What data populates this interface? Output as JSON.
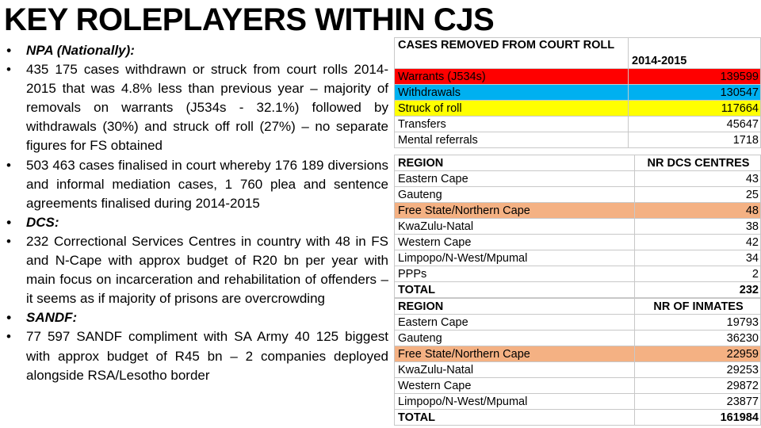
{
  "title": "KEY ROLEPLAYERS WITHIN CJS",
  "bullets": [
    {
      "text": "NPA (Nationally):",
      "style": "head"
    },
    {
      "text": "435 175 cases withdrawn or struck from court rolls 2014-2015 that was 4.8% less than previous year – majority of removals on warrants (J534s - 32.1%) followed by withdrawals (30%) and struck off roll (27%) – no separate figures for FS obtained",
      "style": "body"
    },
    {
      "text": "503 463 cases finalised in court whereby 176 189 diversions and informal mediation cases, 1 760 plea and sentence agreements finalised during 2014-2015",
      "style": "body"
    },
    {
      "text": "DCS:",
      "style": "head"
    },
    {
      "text": "232 Correctional Services Centres in country with 48 in FS and N-Cape with approx budget of R20 bn per year with main focus on incarceration and rehabilitation of offenders – it seems as if majority of prisons are overcrowding",
      "style": "body"
    },
    {
      "text": "SANDF:",
      "style": "head"
    },
    {
      "text": "77 597 SANDF compliment with SA Army 40 125 biggest with approx budget of R45 bn – 2 companies deployed alongside RSA/Lesotho border",
      "style": "body"
    }
  ],
  "bullet_glyph": "•",
  "colors": {
    "red": "#ff0000",
    "blue": "#00b0f0",
    "yellow": "#ffff00",
    "salmon": "#f4b183"
  },
  "court_table": {
    "header_label": "CASES REMOVED FROM COURT ROLL",
    "header_value": "2014-2015",
    "rows": [
      {
        "label": "Warrants (J534s)",
        "value": "139599",
        "color": "red"
      },
      {
        "label": "Withdrawals",
        "value": "130547",
        "color": "blue"
      },
      {
        "label": "Struck of roll",
        "value": "117664",
        "color": "yellow"
      },
      {
        "label": "Transfers",
        "value": "45647",
        "color": ""
      },
      {
        "label": "Mental referrals",
        "value": "1718",
        "color": ""
      }
    ]
  },
  "dcs_table": {
    "header_label": "REGION",
    "header_value": "NR DCS CENTRES",
    "rows": [
      {
        "label": "Eastern Cape",
        "value": "43",
        "color": ""
      },
      {
        "label": "Gauteng",
        "value": "25",
        "color": ""
      },
      {
        "label": "Free State/Northern Cape",
        "value": "48",
        "color": "salmon"
      },
      {
        "label": "KwaZulu-Natal",
        "value": "38",
        "color": ""
      },
      {
        "label": "Western Cape",
        "value": "42",
        "color": ""
      },
      {
        "label": "Limpopo/N-West/Mpumal",
        "value": "34",
        "color": ""
      },
      {
        "label": "PPPs",
        "value": "2",
        "color": ""
      }
    ],
    "total_label": "TOTAL",
    "total_value": "232"
  },
  "inmates_table": {
    "header_label": "REGION",
    "header_value": "NR OF INMATES",
    "rows": [
      {
        "label": "Eastern Cape",
        "value": "19793",
        "color": ""
      },
      {
        "label": "Gauteng",
        "value": "36230",
        "color": ""
      },
      {
        "label": "Free State/Northern Cape",
        "value": "22959",
        "color": "salmon"
      },
      {
        "label": "KwaZulu-Natal",
        "value": "29253",
        "color": ""
      },
      {
        "label": "Western Cape",
        "value": "29872",
        "color": ""
      },
      {
        "label": "Limpopo/N-West/Mpumal",
        "value": "23877",
        "color": ""
      }
    ],
    "total_label": "TOTAL",
    "total_value": "161984"
  }
}
